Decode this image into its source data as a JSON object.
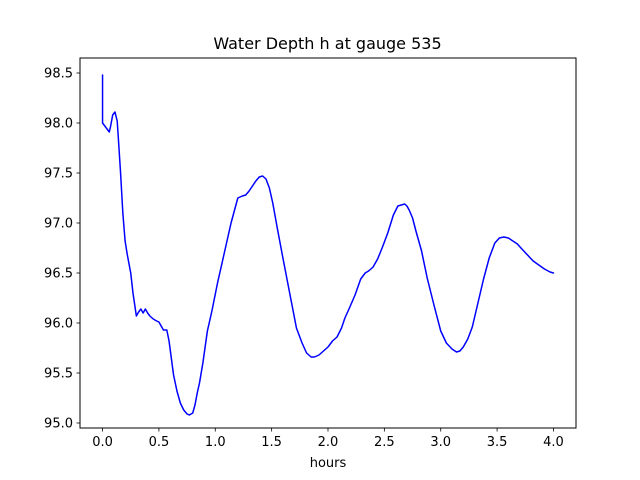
{
  "chart_data": {
    "type": "line",
    "title": "Water Depth h at gauge 535",
    "xlabel": "hours",
    "ylabel": "",
    "xlim": [
      -0.2,
      4.2
    ],
    "ylim": [
      94.95,
      98.65
    ],
    "xticks": [
      0.0,
      0.5,
      1.0,
      1.5,
      2.0,
      2.5,
      3.0,
      3.5,
      4.0
    ],
    "xtick_labels": [
      "0.0",
      "0.5",
      "1.0",
      "1.5",
      "2.0",
      "2.5",
      "3.0",
      "3.5",
      "4.0"
    ],
    "yticks": [
      95.0,
      95.5,
      96.0,
      96.5,
      97.0,
      97.5,
      98.0,
      98.5
    ],
    "ytick_labels": [
      "95.0",
      "95.5",
      "96.0",
      "96.5",
      "97.0",
      "97.5",
      "98.0",
      "98.5"
    ],
    "grid": false,
    "series": [
      {
        "color": "#0000ff",
        "x": [
          0.0,
          0.0,
          0.02,
          0.04,
          0.06,
          0.07,
          0.09,
          0.11,
          0.13,
          0.14,
          0.16,
          0.18,
          0.2,
          0.22,
          0.25,
          0.27,
          0.3,
          0.32,
          0.34,
          0.36,
          0.38,
          0.4,
          0.42,
          0.45,
          0.48,
          0.5,
          0.52,
          0.54,
          0.57,
          0.59,
          0.61,
          0.63,
          0.66,
          0.69,
          0.72,
          0.75,
          0.77,
          0.8,
          0.82,
          0.84,
          0.86,
          0.89,
          0.93,
          0.97,
          1.02,
          1.08,
          1.14,
          1.2,
          1.24,
          1.27,
          1.3,
          1.33,
          1.36,
          1.39,
          1.42,
          1.45,
          1.48,
          1.51,
          1.55,
          1.6,
          1.66,
          1.72,
          1.77,
          1.81,
          1.85,
          1.88,
          1.92,
          1.96,
          2.0,
          2.04,
          2.08,
          2.12,
          2.15,
          2.19,
          2.24,
          2.29,
          2.33,
          2.36,
          2.4,
          2.44,
          2.48,
          2.53,
          2.58,
          2.62,
          2.65,
          2.68,
          2.7,
          2.72,
          2.75,
          2.78,
          2.83,
          2.88,
          2.94,
          3.0,
          3.05,
          3.1,
          3.14,
          3.17,
          3.2,
          3.24,
          3.28,
          3.33,
          3.38,
          3.43,
          3.48,
          3.52,
          3.56,
          3.6,
          3.64,
          3.68,
          3.72,
          3.77,
          3.82,
          3.87,
          3.92,
          3.97,
          4.0
        ],
        "y": [
          98.48,
          98.0,
          97.97,
          97.94,
          97.91,
          97.96,
          98.08,
          98.11,
          98.02,
          97.85,
          97.5,
          97.1,
          96.82,
          96.68,
          96.5,
          96.3,
          96.07,
          96.11,
          96.14,
          96.1,
          96.14,
          96.1,
          96.07,
          96.04,
          96.02,
          96.01,
          95.97,
          95.93,
          95.93,
          95.82,
          95.65,
          95.48,
          95.32,
          95.2,
          95.13,
          95.09,
          95.08,
          95.1,
          95.18,
          95.3,
          95.4,
          95.6,
          95.92,
          96.12,
          96.4,
          96.7,
          97.0,
          97.25,
          97.27,
          97.28,
          97.32,
          97.37,
          97.42,
          97.46,
          97.47,
          97.44,
          97.35,
          97.2,
          96.95,
          96.65,
          96.3,
          95.95,
          95.8,
          95.7,
          95.66,
          95.66,
          95.68,
          95.72,
          95.76,
          95.82,
          95.86,
          95.95,
          96.05,
          96.15,
          96.28,
          96.44,
          96.5,
          96.52,
          96.56,
          96.64,
          96.75,
          96.9,
          97.08,
          97.17,
          97.18,
          97.19,
          97.17,
          97.13,
          97.05,
          96.92,
          96.72,
          96.45,
          96.18,
          95.92,
          95.8,
          95.74,
          95.71,
          95.72,
          95.76,
          95.84,
          95.96,
          96.2,
          96.44,
          96.65,
          96.8,
          96.85,
          96.86,
          96.85,
          96.82,
          96.79,
          96.74,
          96.68,
          96.62,
          96.58,
          96.54,
          96.51,
          96.5
        ]
      }
    ]
  }
}
